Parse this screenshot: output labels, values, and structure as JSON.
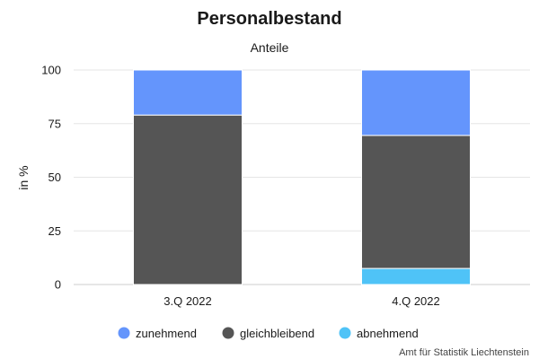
{
  "chart_data": {
    "type": "bar",
    "stacked": true,
    "title": "Personalbestand",
    "subtitle": "Anteile",
    "ylabel": "in %",
    "xlabel": "",
    "ylim": [
      0,
      100
    ],
    "yticks": [
      0,
      25,
      50,
      75,
      100
    ],
    "grid": true,
    "legend_position": "bottom",
    "categories": [
      "3.Q 2022",
      "4.Q 2022"
    ],
    "series": [
      {
        "name": "abnehmend",
        "color": "#4fc3f7",
        "values": [
          0,
          7.5
        ]
      },
      {
        "name": "gleichbleibend",
        "color": "#555555",
        "values": [
          79,
          62
        ]
      },
      {
        "name": "zunehmend",
        "color": "#6495fc",
        "values": [
          21,
          30.5
        ]
      }
    ],
    "legend_order": [
      "zunehmend",
      "gleichbleibend",
      "abnehmend"
    ],
    "credit": "Amt für Statistik Liechtenstein"
  }
}
